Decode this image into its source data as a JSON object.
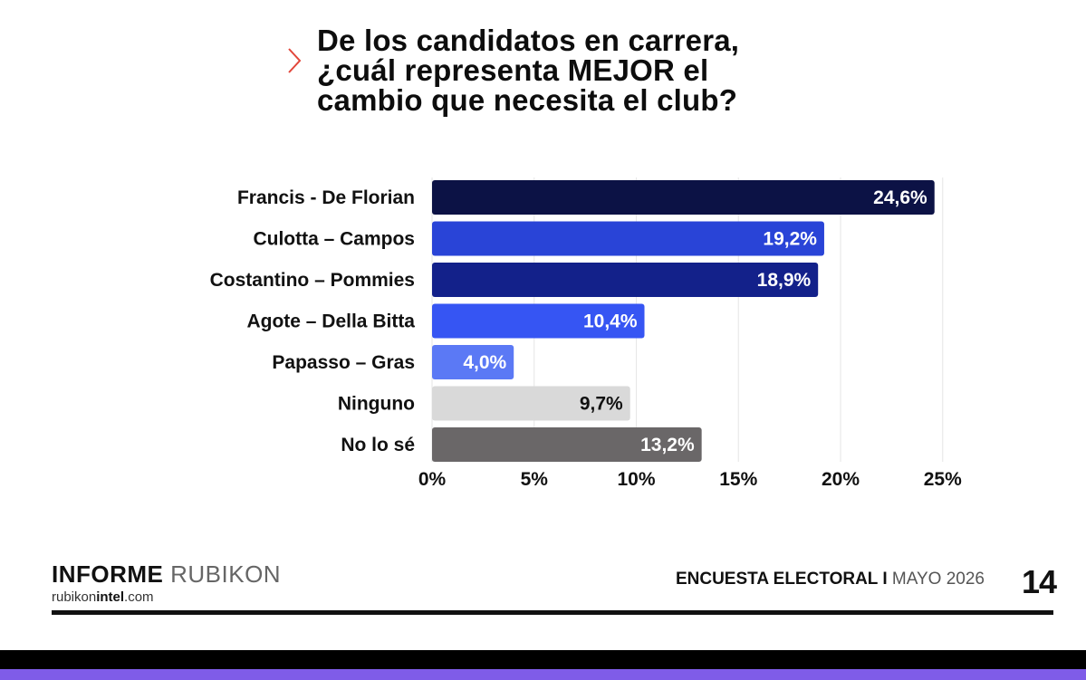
{
  "title_lines": [
    "De los candidatos en carrera,",
    "¿cuál representa MEJOR el",
    "cambio que necesita el club?"
  ],
  "chart_data": {
    "type": "bar",
    "orientation": "horizontal",
    "categories": [
      "Francis - De Florian",
      "Culotta – Campos",
      "Costantino – Pommies",
      "Agote – Della Bitta",
      "Papasso – Gras",
      "Ninguno",
      "No lo sé"
    ],
    "values": [
      24.6,
      19.2,
      18.9,
      10.4,
      4.0,
      9.7,
      13.2
    ],
    "value_labels": [
      "24,6%",
      "19,2%",
      "18,9%",
      "10,4%",
      "4,0%",
      "9,7%",
      "13,2%"
    ],
    "bar_colors": [
      "#0c1245",
      "#2944d7",
      "#13218a",
      "#3655f3",
      "#5b79f5",
      "#d9d9d9",
      "#6a6768"
    ],
    "label_colors": [
      "#ffffff",
      "#ffffff",
      "#ffffff",
      "#ffffff",
      "#ffffff",
      "#111111",
      "#ffffff"
    ],
    "xlim": [
      0,
      25
    ],
    "x_ticks": [
      0,
      5,
      10,
      15,
      20,
      25
    ],
    "x_tick_labels": [
      "0%",
      "5%",
      "10%",
      "15%",
      "20%",
      "25%"
    ],
    "grid": "vertical",
    "legend": "none"
  },
  "footer": {
    "brand_bold": "INFORME",
    "brand_light": "RUBIKON",
    "url_prefix": "rubikon",
    "url_bold": "intel",
    "url_suffix": ".com",
    "survey_bold": "ENCUESTA ELECTORAL I",
    "survey_date": "MAYO 2026",
    "page_number": "14"
  },
  "colors": {
    "accent_chevron": "#e2463a",
    "band_dark": "#000000",
    "band_purple": "#7f5ce8"
  }
}
